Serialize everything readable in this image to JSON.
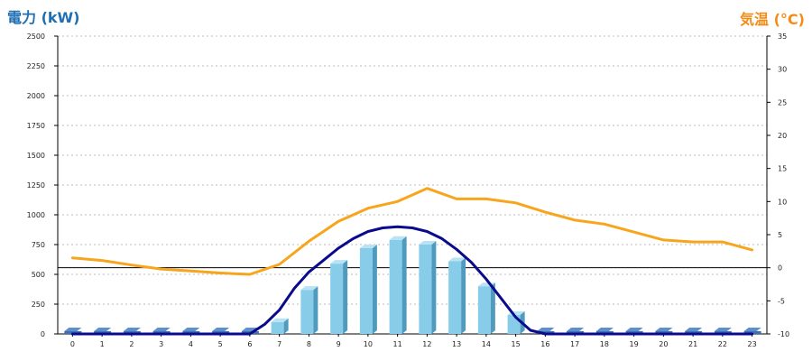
{
  "chart_data": {
    "type": "bar",
    "left_axis_title": "電力 (kW)",
    "right_axis_title": "気温 (°C)",
    "categories": [
      "0",
      "1",
      "2",
      "3",
      "4",
      "5",
      "6",
      "7",
      "8",
      "9",
      "10",
      "11",
      "12",
      "13",
      "14",
      "15",
      "16",
      "17",
      "18",
      "19",
      "20",
      "21",
      "22",
      "23"
    ],
    "left_ylim": [
      0,
      2500
    ],
    "left_ticks": [
      0,
      250,
      500,
      750,
      1000,
      1250,
      1500,
      1750,
      2000,
      2250,
      2500
    ],
    "right_ylim": [
      -10,
      35
    ],
    "right_ticks": [
      -10,
      -5,
      0,
      5,
      10,
      15,
      20,
      25,
      30,
      35
    ],
    "grid": true,
    "colors": {
      "bar_front": "#87cdea",
      "bar_side": "#4f9bbd",
      "bar_top": "#b7e3f4",
      "zero_bar": "#3f6fb0",
      "power_line": "#0a0a8c",
      "temp_line": "#f7a51c",
      "left_title": "#1f6fb2",
      "right_title": "#f28c16"
    },
    "series": [
      {
        "axis": "left",
        "style": "bar",
        "values": [
          0,
          0,
          0,
          0,
          0,
          0,
          0,
          100,
          370,
          590,
          720,
          790,
          750,
          610,
          400,
          160,
          0,
          0,
          0,
          0,
          0,
          0,
          0,
          0
        ]
      },
      {
        "axis": "left",
        "style": "line",
        "x": [
          0,
          1,
          2,
          3,
          4,
          5,
          6,
          6.5,
          7,
          7.5,
          8,
          8.5,
          9,
          9.5,
          10,
          10.5,
          11,
          11.5,
          12,
          12.5,
          13,
          13.5,
          14,
          14.5,
          15,
          15.5,
          16,
          17,
          18,
          19,
          20,
          21,
          22,
          23
        ],
        "values": [
          0,
          0,
          0,
          0,
          0,
          0,
          0,
          80,
          200,
          380,
          520,
          620,
          720,
          800,
          860,
          890,
          900,
          890,
          860,
          800,
          710,
          600,
          460,
          300,
          140,
          30,
          0,
          0,
          0,
          0,
          0,
          0,
          0,
          0
        ]
      },
      {
        "axis": "right",
        "style": "line",
        "x": [
          0,
          1,
          2,
          3,
          4,
          5,
          6,
          7,
          8,
          9,
          10,
          11,
          12,
          13,
          14,
          15,
          16,
          17,
          18,
          19,
          20,
          21,
          22,
          23
        ],
        "values": [
          1.5,
          1.1,
          0.4,
          -0.2,
          -0.5,
          -0.8,
          -1,
          0.5,
          4,
          7,
          9,
          10,
          12,
          10.4,
          10.4,
          9.8,
          8.4,
          7.2,
          6.6,
          5.4,
          4.2,
          3.9,
          3.9,
          2.7
        ]
      }
    ]
  }
}
